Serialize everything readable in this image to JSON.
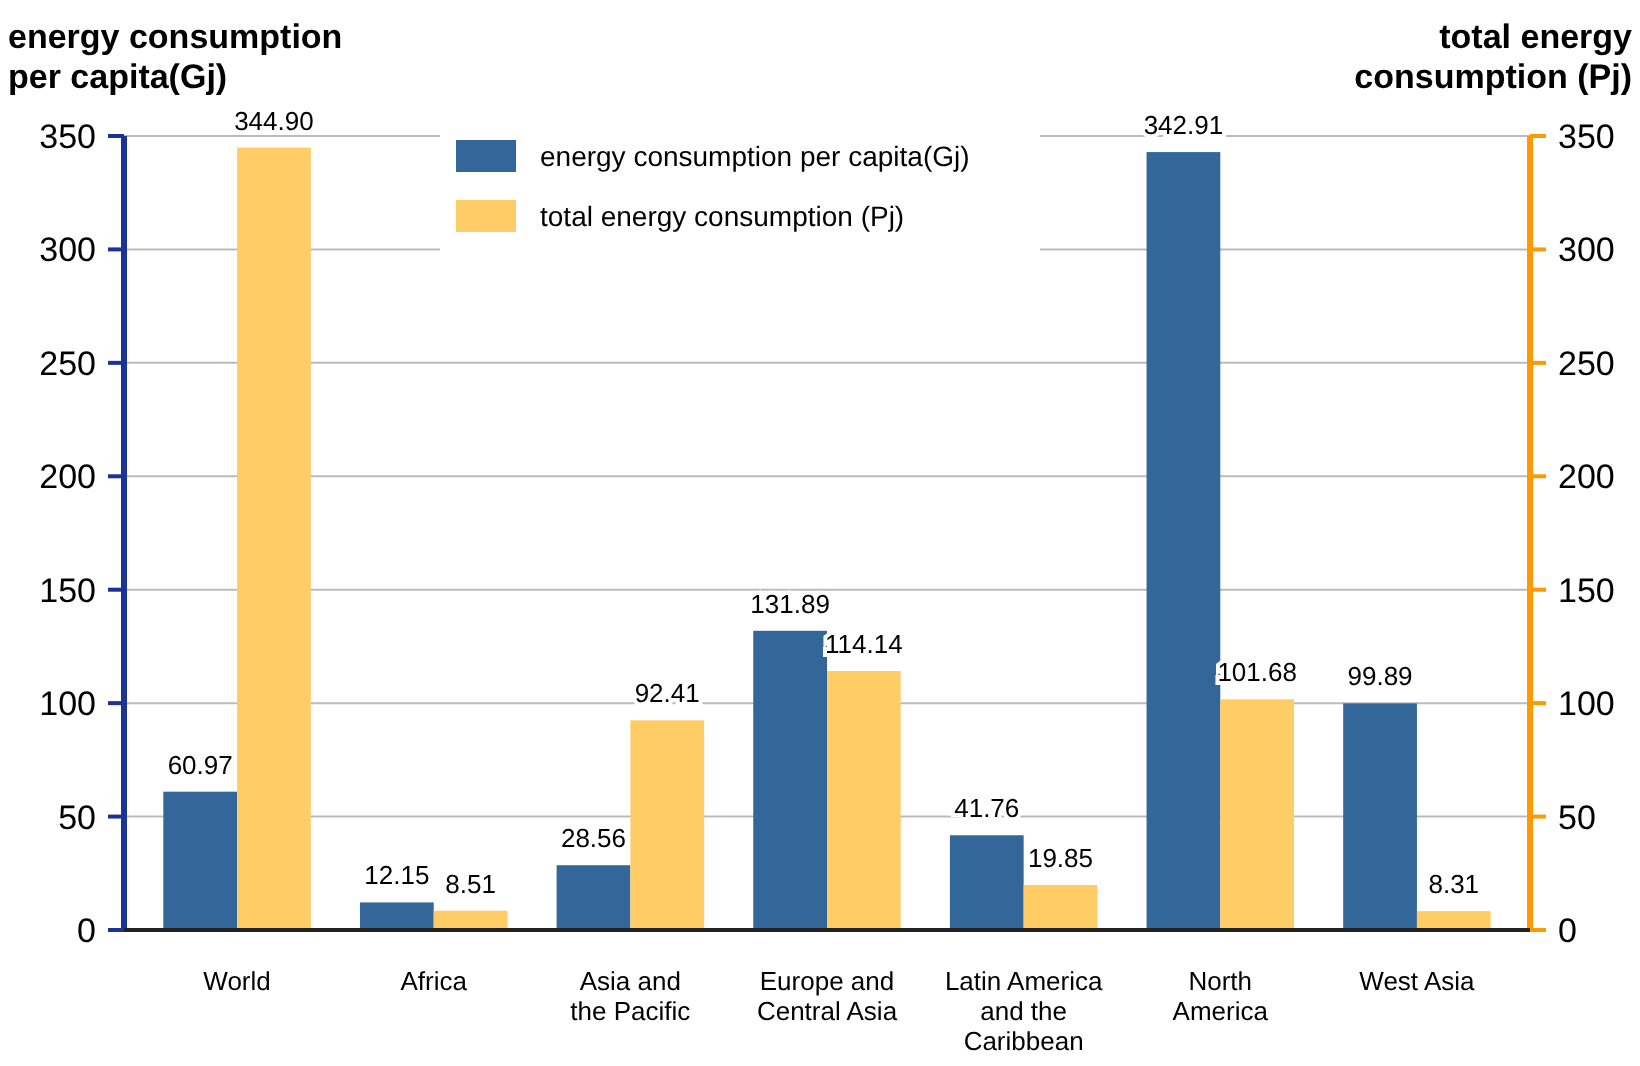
{
  "chart_data": {
    "type": "bar",
    "ylabel": "energy consumption\nper capita(Gj)",
    "y2label": "total energy\nconsumption (Pj)",
    "categories": [
      "World",
      "Africa",
      "Asia and\nthe Pacific",
      "Europe and\nCentral Asia",
      "Latin America\nand the\nCaribbean",
      "North\nAmerica",
      "West Asia"
    ],
    "series": [
      {
        "name": "energy consumption per capita(Gj)",
        "color": "#336699",
        "values": [
          60.97,
          12.15,
          28.56,
          131.89,
          41.76,
          342.91,
          99.89
        ],
        "value_labels": [
          "60.97",
          "12.15",
          "28.56",
          "131.89",
          "41.76",
          "342.91",
          "99.89"
        ]
      },
      {
        "name": "total energy consumption (Pj)",
        "color": "#ffcc66",
        "axis": "y2",
        "values": [
          344.9,
          8.51,
          92.41,
          114.14,
          19.85,
          101.68,
          8.31
        ],
        "value_labels": [
          "344.90",
          "8.51",
          "92.41",
          "114.14",
          "19.85",
          "101.68",
          "8.31"
        ]
      }
    ],
    "ylim": [
      0,
      350
    ],
    "yticks": [
      0,
      50,
      100,
      150,
      200,
      250,
      300,
      350
    ],
    "y2lim": [
      0,
      350
    ],
    "y2ticks": [
      0,
      50,
      100,
      150,
      200,
      250,
      300,
      350
    ],
    "grid": "y",
    "legend": "top"
  }
}
